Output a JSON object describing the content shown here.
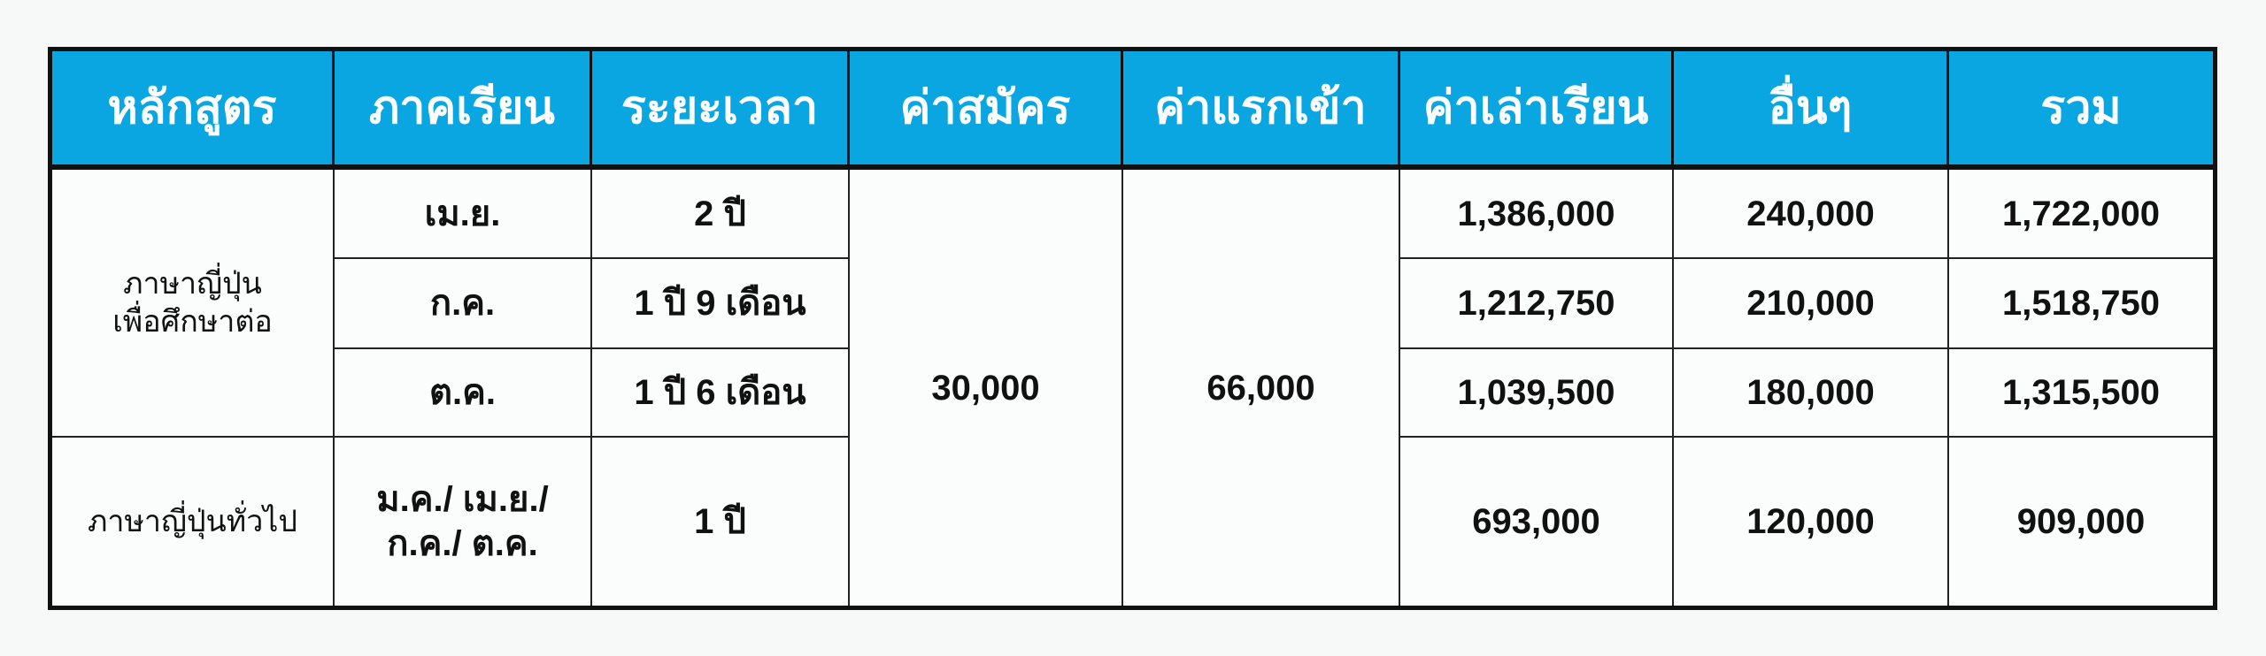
{
  "headers": [
    "หลักสูตร",
    "ภาคเรียน",
    "ระยะเวลา",
    "ค่าสมัคร",
    "ค่าแรกเข้า",
    "ค่าเล่าเรียน",
    "อื่นๆ",
    "รวม"
  ],
  "colors": {
    "header_bg": "#0aa6e2",
    "header_text": "#ffffff",
    "border": "#111111"
  },
  "courses": [
    {
      "name_line1": "ภาษาญี่ปุ่น",
      "name_line2": "เพื่อศึกษาต่อ",
      "rows": [
        {
          "term": "เม.ย.",
          "duration": "2 ปี",
          "tuition": "1,386,000",
          "other": "240,000",
          "total": "1,722,000"
        },
        {
          "term": "ก.ค.",
          "duration": "1 ปี 9 เดือน",
          "tuition": "1,212,750",
          "other": "210,000",
          "total": "1,518,750"
        },
        {
          "term": "ต.ค.",
          "duration": "1 ปี 6 เดือน",
          "tuition": "1,039,500",
          "other": "180,000",
          "total": "1,315,500"
        }
      ]
    },
    {
      "name_line1": "ภาษาญี่ปุ่นทั่วไป",
      "rows": [
        {
          "term_line1": "ม.ค./ เม.ย./",
          "term_line2": "ก.ค./ ต.ค.",
          "duration": "1 ปี",
          "tuition": "693,000",
          "other": "120,000",
          "total": "909,000"
        }
      ]
    }
  ],
  "application_fee": "30,000",
  "entrance_fee": "66,000"
}
